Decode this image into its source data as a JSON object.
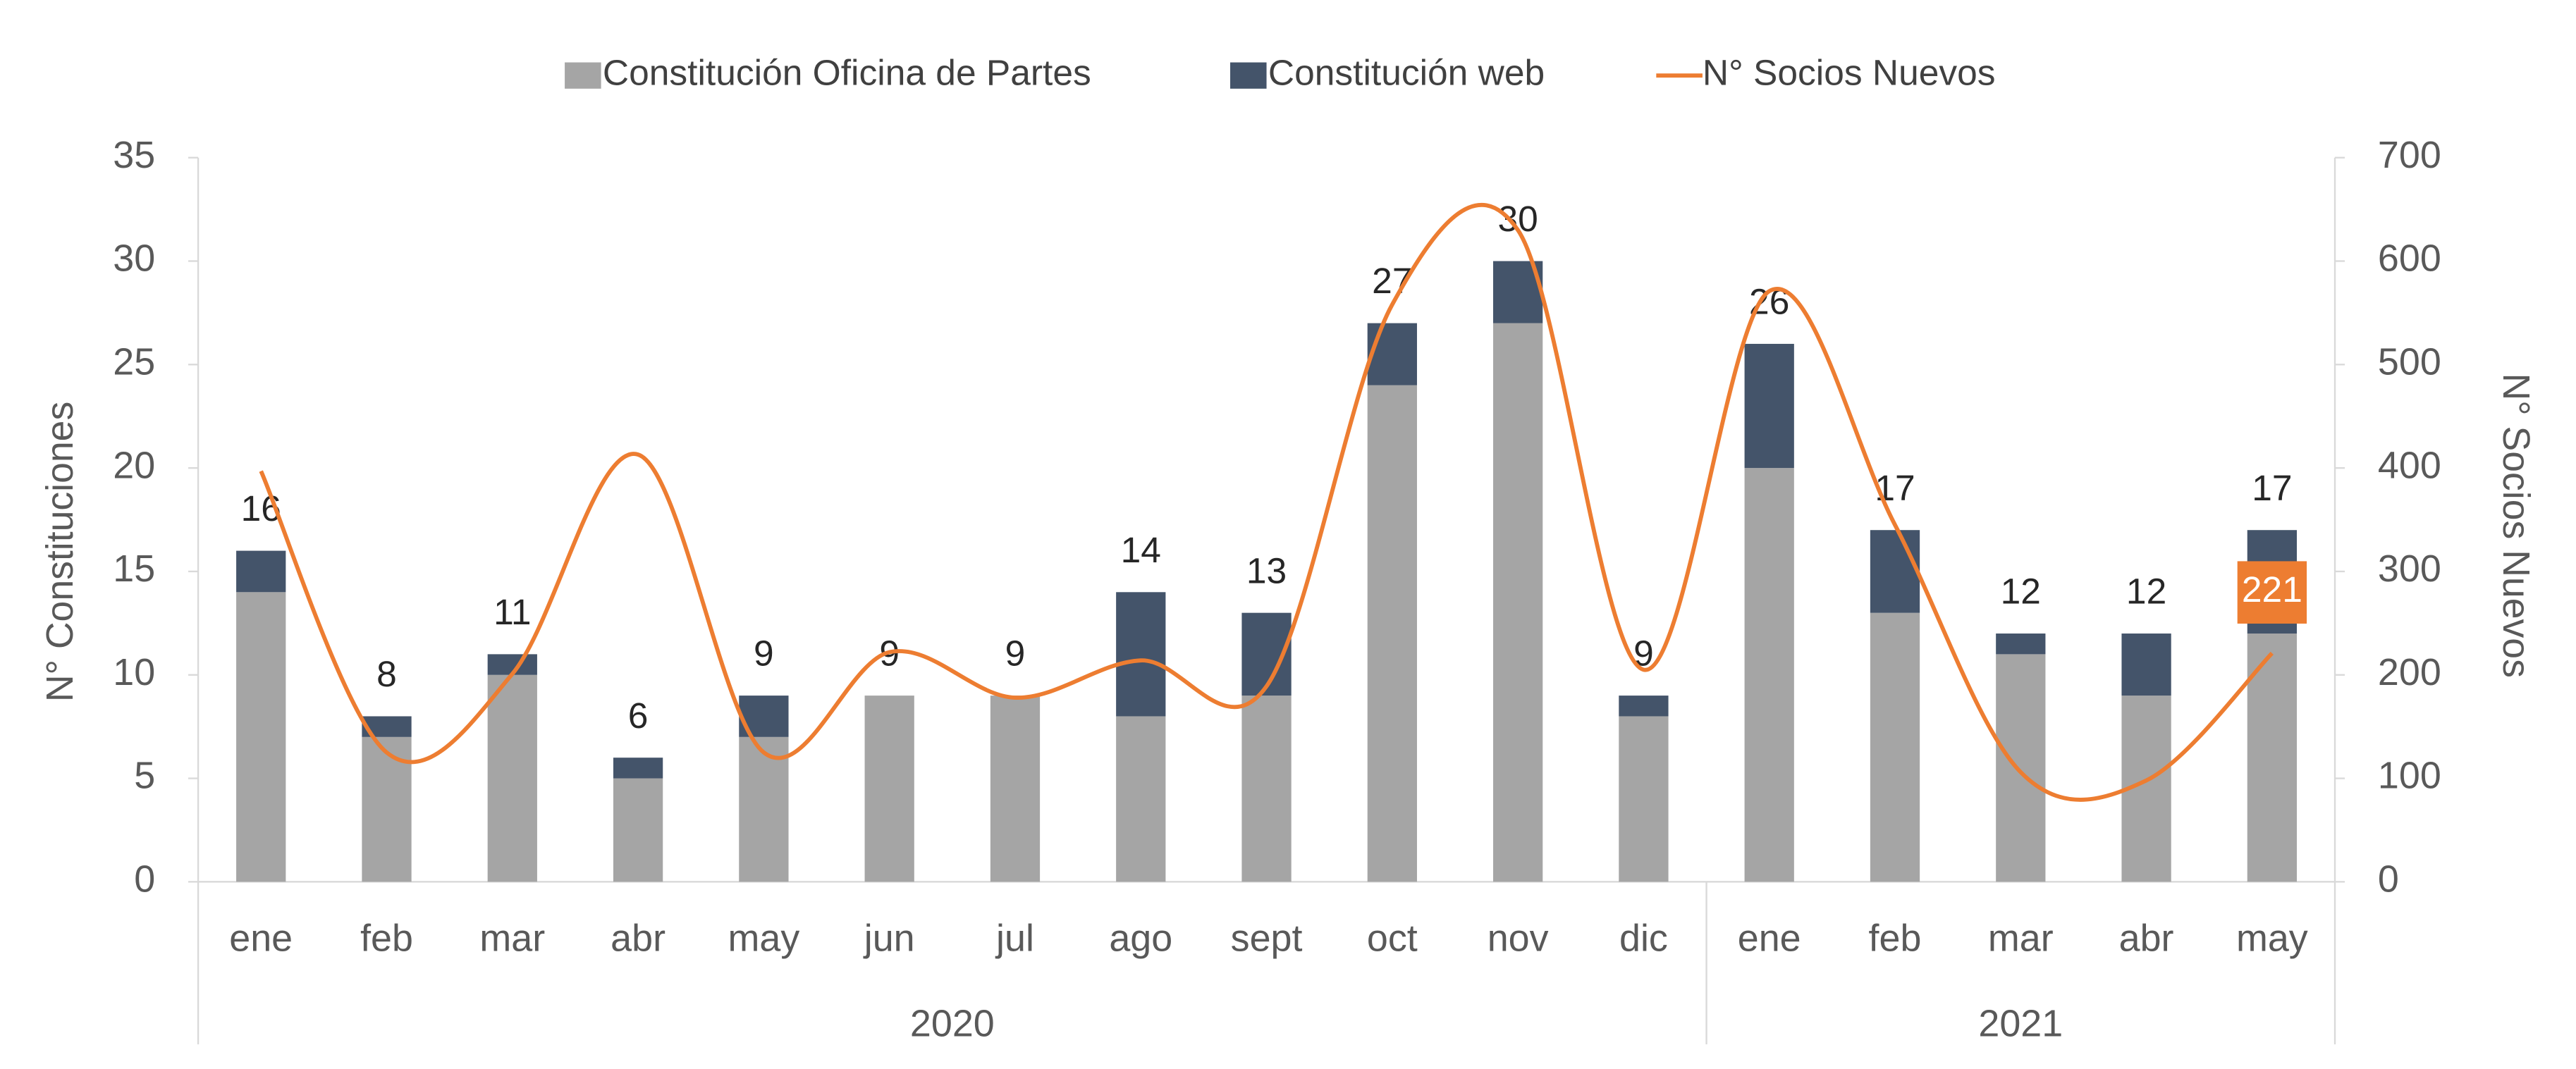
{
  "chart_data": {
    "type": "bar",
    "stacked": true,
    "categories": [
      "ene",
      "feb",
      "mar",
      "abr",
      "may",
      "jun",
      "jul",
      "ago",
      "sept",
      "oct",
      "nov",
      "dic",
      "ene",
      "feb",
      "mar",
      "abr",
      "may"
    ],
    "category_groups": [
      {
        "label": "2020",
        "span": 12
      },
      {
        "label": "2021",
        "span": 5
      }
    ],
    "series": [
      {
        "name": "Constitución Oficina de Partes",
        "color": "#a5a5a5",
        "values": [
          14,
          7,
          10,
          5,
          7,
          9,
          9,
          8,
          9,
          24,
          27,
          8,
          20,
          13,
          11,
          9,
          12
        ]
      },
      {
        "name": "Constitución web",
        "color": "#44546a",
        "values": [
          2,
          1,
          1,
          1,
          2,
          0,
          0,
          6,
          4,
          3,
          3,
          1,
          6,
          4,
          1,
          3,
          5
        ]
      },
      {
        "name": "N° Socios Nuevos",
        "type": "line",
        "color": "#ed7d31",
        "axis": "y2",
        "values": [
          397,
          125,
          201,
          413,
          125,
          222,
          178,
          214,
          189,
          558,
          630,
          205,
          571,
          345,
          106,
          98,
          221
        ]
      }
    ],
    "totals": [
      16,
      8,
      11,
      6,
      9,
      9,
      9,
      14,
      13,
      27,
      30,
      9,
      26,
      17,
      12,
      12,
      17
    ],
    "y_label": "N° Constituciones",
    "y2_label": "N° Socios Nuevos",
    "ylim": [
      0,
      35
    ],
    "yticks": [
      0,
      5,
      10,
      15,
      20,
      25,
      30,
      35
    ],
    "y2lim": [
      0,
      700
    ],
    "y2ticks": [
      0,
      100,
      200,
      300,
      400,
      500,
      600,
      700
    ],
    "legend": "top"
  }
}
